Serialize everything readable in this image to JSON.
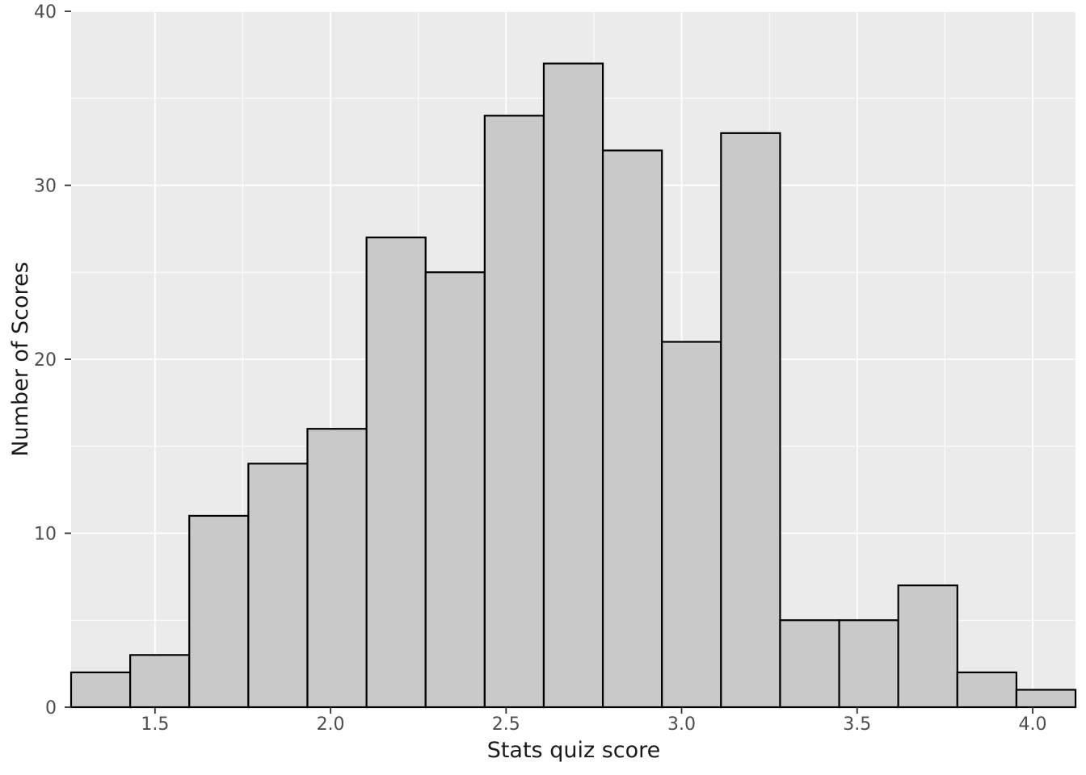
{
  "figure": {
    "background": "#FFFFFF",
    "panel_background": "#EBEBEB",
    "grid_color": "#FFFFFF",
    "bar_fill": "#C9C9C9",
    "bar_stroke": "#000000",
    "tick_mark_color": "#333333",
    "tick_label_color": "#4D4D4D",
    "axis_title_color": "#1A1A1A"
  },
  "chart_data": {
    "type": "bar",
    "subtype": "histogram",
    "title": "",
    "xlabel": "Stats quiz score",
    "ylabel": "Number of Scores",
    "bin_start": 1.261,
    "bin_width": 0.1683,
    "counts": [
      2,
      3,
      11,
      14,
      16,
      27,
      25,
      34,
      37,
      32,
      21,
      33,
      5,
      5,
      7,
      2,
      1
    ],
    "total_n": 275,
    "xlim": [
      1.261,
      4.122
    ],
    "ylim": [
      0,
      40
    ],
    "x_ticks": [
      1.5,
      2.0,
      2.5,
      3.0,
      3.5,
      4.0
    ],
    "x_tick_labels": [
      "1.5",
      "2.0",
      "2.5",
      "3.0",
      "3.5",
      "4.0"
    ],
    "y_ticks": [
      0,
      10,
      20,
      30,
      40
    ],
    "y_tick_labels": [
      "0",
      "10",
      "20",
      "30",
      "40"
    ],
    "x_minor_ticks": [
      1.75,
      2.25,
      2.75,
      3.25,
      3.75
    ],
    "y_minor_ticks": [
      5,
      15,
      25,
      35
    ],
    "grid": true,
    "legend": "none",
    "theme": "ggplot2-grey"
  }
}
